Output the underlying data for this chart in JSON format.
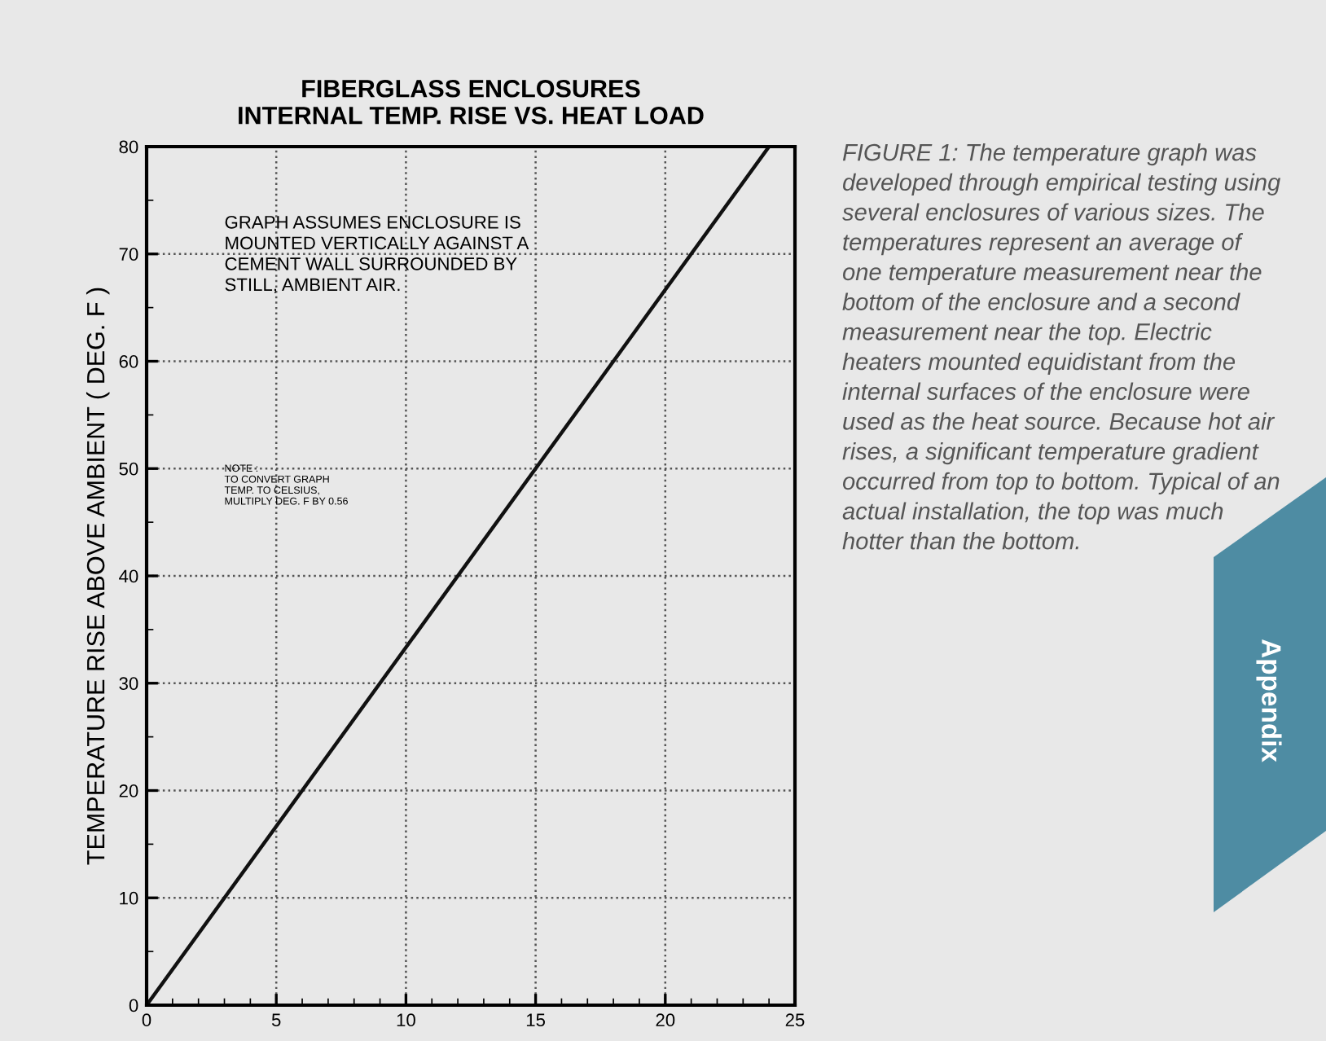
{
  "chart_data": {
    "type": "line",
    "title": "FIBERGLASS ENCLOSURES\nINTERNAL TEMP. RISE VS. HEAT LOAD",
    "ylabel": "TEMPERATURE RISE ABOVE AMBIENT ( DEG. F )",
    "x": [
      0,
      24
    ],
    "values": [
      0,
      80
    ],
    "color": "#111111",
    "line_style": "solid",
    "marker": "none",
    "xlim": [
      0,
      25
    ],
    "ylim": [
      0,
      80
    ],
    "xticks": [
      0,
      5,
      10,
      15,
      20,
      25
    ],
    "yticks": [
      0,
      10,
      20,
      30,
      40,
      50,
      60,
      70,
      80
    ],
    "grid": true,
    "annotations": [
      "GRAPH ASSUMES ENCLOSURE IS\nMOUNTED VERTICALLY AGAINST A\nCEMENT WALL SURROUNDED BY\nSTILL, AMBIENT AIR.",
      "NOTE :\nTO CONVERT GRAPH\nTEMP. TO CELSIUS,\nMULTIPLY DEG. F BY 0.56",
      "FIGURE 1: The temperature graph was developed through empirical testing using several enclosures of various sizes. The temperatures represent an average of one temperature measurement near the bottom of the enclosure and a second measurement near the top. Electric heaters mounted equidistant from the internal surfaces of the enclosure were used as the heat source. Because hot air rises, a significant temperature gradient occurred from top to bottom. Typical of an actual installation, the top was much hotter than the bottom.",
      "Appendix"
    ]
  }
}
